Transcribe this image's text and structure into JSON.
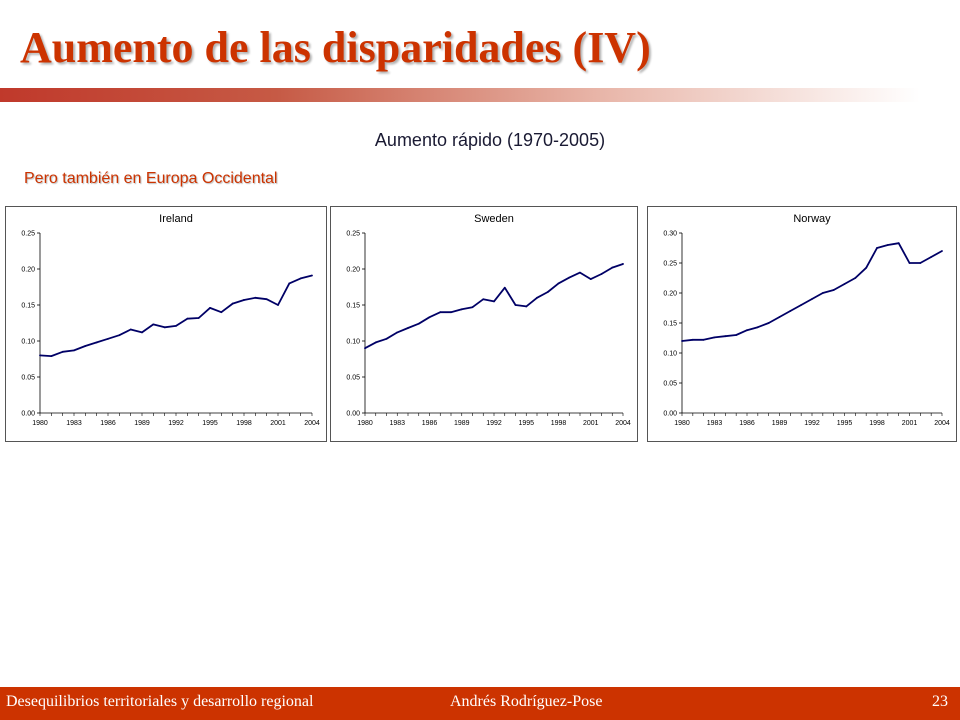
{
  "slide": {
    "title": "Aumento de las disparidades (IV)",
    "subtitle": "Aumento rápido (1970-2005)",
    "note": "Pero también en Europa Occidental"
  },
  "footer": {
    "course": "Desequilibrios territoriales y desarrollo regional",
    "author": "Andrés  Rodríguez-Pose",
    "page": "23"
  },
  "colors": {
    "title": "#cc3300",
    "footer_bg": "#cc3300",
    "line": "#000066"
  },
  "chart_data": [
    {
      "type": "line",
      "title": "Ireland",
      "xlabel": "",
      "ylabel": "",
      "x_ticks": [
        "1980",
        "1983",
        "1986",
        "1989",
        "1992",
        "1995",
        "1998",
        "2001",
        "2004"
      ],
      "y_ticks": [
        "0.00",
        "0.05",
        "0.10",
        "0.15",
        "0.20",
        "0.25"
      ],
      "ylim": [
        0,
        0.25
      ],
      "xlim": [
        1980,
        2004
      ],
      "grid": false,
      "series": [
        {
          "x": [
            1980,
            1981,
            1982,
            1983,
            1984,
            1985,
            1986,
            1987,
            1988,
            1989,
            1990,
            1991,
            1992,
            1993,
            1994,
            1995,
            1996,
            1997,
            1998,
            1999,
            2000,
            2001,
            2002,
            2003,
            2004
          ],
          "values": [
            0.08,
            0.079,
            0.085,
            0.087,
            0.093,
            0.098,
            0.103,
            0.108,
            0.116,
            0.112,
            0.123,
            0.119,
            0.121,
            0.131,
            0.132,
            0.146,
            0.14,
            0.152,
            0.157,
            0.16,
            0.158,
            0.15,
            0.18,
            0.187,
            0.191
          ]
        }
      ]
    },
    {
      "type": "line",
      "title": "Sweden",
      "xlabel": "",
      "ylabel": "",
      "x_ticks": [
        "1980",
        "1983",
        "1986",
        "1989",
        "1992",
        "1995",
        "1998",
        "2001",
        "2004"
      ],
      "y_ticks": [
        "0.00",
        "0.05",
        "0.10",
        "0.15",
        "0.20",
        "0.25"
      ],
      "ylim": [
        0,
        0.25
      ],
      "xlim": [
        1980,
        2004
      ],
      "grid": false,
      "series": [
        {
          "x": [
            1980,
            1981,
            1982,
            1983,
            1984,
            1985,
            1986,
            1987,
            1988,
            1989,
            1990,
            1991,
            1992,
            1993,
            1994,
            1995,
            1996,
            1997,
            1998,
            1999,
            2000,
            2001,
            2002,
            2003,
            2004
          ],
          "values": [
            0.09,
            0.098,
            0.103,
            0.112,
            0.118,
            0.124,
            0.133,
            0.14,
            0.14,
            0.144,
            0.147,
            0.158,
            0.155,
            0.174,
            0.15,
            0.148,
            0.16,
            0.168,
            0.18,
            0.188,
            0.195,
            0.186,
            0.193,
            0.202,
            0.207
          ]
        }
      ]
    },
    {
      "type": "line",
      "title": "Norway",
      "xlabel": "",
      "ylabel": "",
      "x_ticks": [
        "1980",
        "1983",
        "1986",
        "1989",
        "1992",
        "1995",
        "1998",
        "2001",
        "2004"
      ],
      "y_ticks": [
        "0.00",
        "0.05",
        "0.10",
        "0.15",
        "0.20",
        "0.25",
        "0.30"
      ],
      "ylim": [
        0,
        0.3
      ],
      "xlim": [
        1980,
        2004
      ],
      "grid": false,
      "series": [
        {
          "x": [
            1980,
            1981,
            1982,
            1983,
            1984,
            1985,
            1986,
            1987,
            1988,
            1989,
            1990,
            1991,
            1992,
            1993,
            1994,
            1995,
            1996,
            1997,
            1998,
            1999,
            2000,
            2001,
            2002,
            2003,
            2004
          ],
          "values": [
            0.12,
            0.122,
            0.122,
            0.126,
            0.128,
            0.13,
            0.138,
            0.143,
            0.15,
            0.16,
            0.17,
            0.18,
            0.19,
            0.2,
            0.205,
            0.215,
            0.225,
            0.242,
            0.275,
            0.28,
            0.283,
            0.25,
            0.25,
            0.26,
            0.27
          ]
        }
      ]
    }
  ]
}
